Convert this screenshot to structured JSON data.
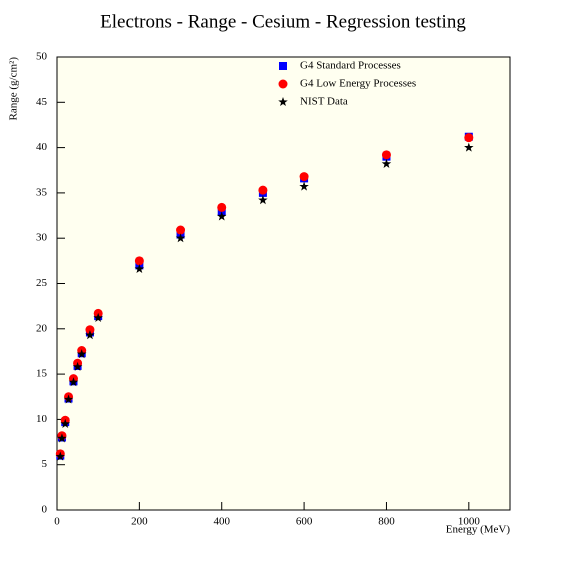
{
  "chart_data": {
    "type": "scatter",
    "title": "Electrons - Range - Cesium - Regression testing",
    "x_label": "Energy (MeV)",
    "y_label": "Range (g/cm²)",
    "x": [
      8,
      12,
      20,
      28,
      40,
      50,
      60,
      80,
      100,
      200,
      300,
      400,
      500,
      600,
      800,
      1000
    ],
    "series": [
      {
        "name": "G4 Standard Processes",
        "color": "#0000ff",
        "marker": "square",
        "values": [
          6.0,
          8.0,
          9.7,
          12.3,
          14.2,
          15.9,
          17.3,
          19.6,
          21.4,
          27.0,
          30.4,
          32.9,
          35.0,
          36.6,
          39.0,
          41.2
        ]
      },
      {
        "name": "G4 Low Energy Processes",
        "color": "#ff0000",
        "marker": "circle",
        "values": [
          6.2,
          8.2,
          9.9,
          12.5,
          14.5,
          16.2,
          17.6,
          19.9,
          21.7,
          27.5,
          30.9,
          33.4,
          35.3,
          36.8,
          39.2,
          41.1
        ]
      },
      {
        "name": "NIST Data",
        "color": "#000000",
        "marker": "star",
        "values": [
          5.9,
          7.9,
          9.5,
          12.2,
          14.1,
          15.8,
          17.2,
          19.3,
          21.2,
          26.6,
          30.0,
          32.4,
          34.2,
          35.7,
          38.2,
          40.0
        ]
      }
    ],
    "xlim": [
      0,
      1100
    ],
    "xticks": [
      0,
      200,
      400,
      600,
      800,
      1000
    ],
    "ylim": [
      0,
      50
    ],
    "yticks": [
      0,
      5,
      10,
      15,
      20,
      25,
      30,
      35,
      40,
      45,
      50
    ],
    "background": "#fffff0"
  }
}
